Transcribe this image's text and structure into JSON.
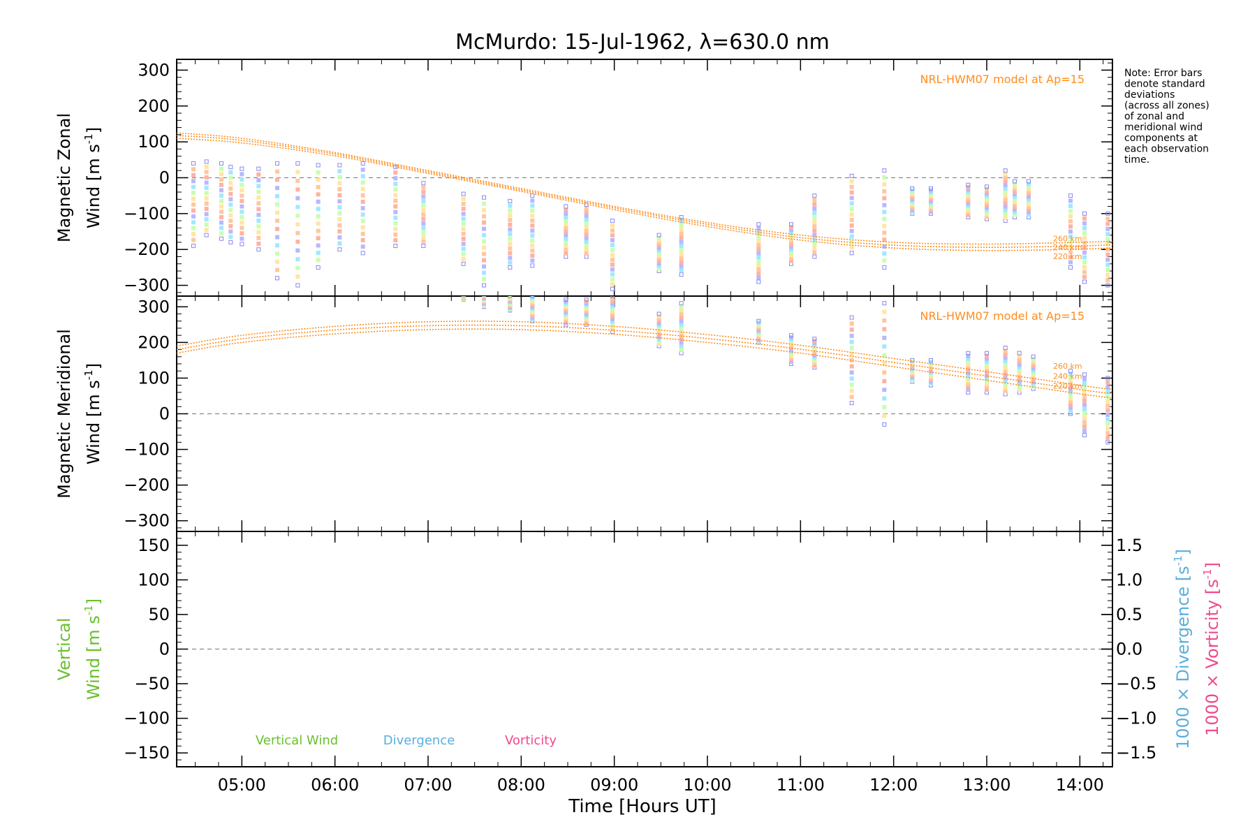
{
  "colors": {
    "model": "#ff8c1a",
    "vertical": "#6abf2e",
    "divergence": "#5aaedc",
    "vorticity": "#ee4a8c",
    "zero_line": "#888888",
    "points": [
      "#ffb3a0",
      "#ffc7a0",
      "#ffe6a0",
      "#c8ffb0",
      "#a0e8ff",
      "#b8b8ff"
    ]
  },
  "chart_data": {
    "type": "scatter",
    "title": "McMurdo: 15-Jul-1962, λ=630.0 nm",
    "xlabel": "Time [Hours UT]",
    "xlim": [
      4.3,
      14.35
    ],
    "x_ticks": [
      5,
      6,
      7,
      8,
      9,
      10,
      11,
      12,
      13,
      14
    ],
    "x_tick_labels": [
      "05:00",
      "06:00",
      "07:00",
      "08:00",
      "09:00",
      "10:00",
      "11:00",
      "12:00",
      "13:00",
      "14:00"
    ],
    "grid": false,
    "note": [
      "Note: Error bars",
      "denote standard",
      "deviations",
      "(across all zones)",
      "of zonal and",
      "meridional wind",
      "components at",
      "each observation",
      "time."
    ],
    "panels": [
      {
        "id": "zonal",
        "ylabel_line1": "Magnetic Zonal",
        "ylabel_line2": "Wind [m s",
        "ylabel_sup": "-1",
        "ylabel_close": "]",
        "ylim": [
          -330,
          330
        ],
        "y_ticks": [
          -300,
          -200,
          -100,
          0,
          100,
          200,
          300
        ],
        "y_tick_labels": [
          "−300",
          "−200",
          "−100",
          "0",
          "100",
          "200",
          "300"
        ],
        "model_label": "NRL-HWM07 model at Ap=15",
        "model_curves": [
          {
            "name": "260 km",
            "x": [
              4.3,
              5,
              6,
              7,
              8,
              9,
              10,
              11,
              12,
              13,
              14,
              14.35
            ],
            "y": [
              125,
              110,
              70,
              20,
              -30,
              -80,
              -125,
              -160,
              -180,
              -185,
              -180,
              -177
            ]
          },
          {
            "name": "240 km",
            "x": [
              4.3,
              5,
              6,
              7,
              8,
              9,
              10,
              11,
              12,
              13,
              14,
              14.35
            ],
            "y": [
              118,
              104,
              66,
              16,
              -34,
              -84,
              -130,
              -167,
              -188,
              -194,
              -190,
              -187
            ]
          },
          {
            "name": "220 km",
            "x": [
              4.3,
              5,
              6,
              7,
              8,
              9,
              10,
              11,
              12,
              13,
              14,
              14.35
            ],
            "y": [
              110,
              97,
              61,
              12,
              -38,
              -89,
              -136,
              -174,
              -196,
              -203,
              -199,
              -196
            ]
          }
        ],
        "observations": [
          {
            "x": 4.48,
            "low": -190,
            "high": 40
          },
          {
            "x": 4.62,
            "low": -160,
            "high": 45
          },
          {
            "x": 4.78,
            "low": -170,
            "high": 40
          },
          {
            "x": 4.88,
            "low": -180,
            "high": 30
          },
          {
            "x": 5.0,
            "low": -185,
            "high": 25
          },
          {
            "x": 5.18,
            "low": -200,
            "high": 25
          },
          {
            "x": 5.38,
            "low": -280,
            "high": 40
          },
          {
            "x": 5.6,
            "low": -300,
            "high": 40
          },
          {
            "x": 5.82,
            "low": -250,
            "high": 35
          },
          {
            "x": 6.05,
            "low": -200,
            "high": 35
          },
          {
            "x": 6.3,
            "low": -210,
            "high": 40
          },
          {
            "x": 6.65,
            "low": -190,
            "high": 30
          },
          {
            "x": 6.95,
            "low": -190,
            "high": -15
          },
          {
            "x": 7.38,
            "low": -240,
            "high": -45
          },
          {
            "x": 7.6,
            "low": -300,
            "high": -55
          },
          {
            "x": 7.88,
            "low": -250,
            "high": -65
          },
          {
            "x": 8.12,
            "low": -245,
            "high": -50
          },
          {
            "x": 8.48,
            "low": -220,
            "high": -80
          },
          {
            "x": 8.7,
            "low": -220,
            "high": -75
          },
          {
            "x": 8.98,
            "low": -310,
            "high": -120
          },
          {
            "x": 9.48,
            "low": -260,
            "high": -160
          },
          {
            "x": 9.72,
            "low": -270,
            "high": -110
          },
          {
            "x": 10.55,
            "low": -290,
            "high": -130
          },
          {
            "x": 10.9,
            "low": -240,
            "high": -130
          },
          {
            "x": 11.15,
            "low": -220,
            "high": -50
          },
          {
            "x": 11.55,
            "low": -210,
            "high": 5
          },
          {
            "x": 11.9,
            "low": -250,
            "high": 20
          },
          {
            "x": 12.2,
            "low": -100,
            "high": -30
          },
          {
            "x": 12.4,
            "low": -100,
            "high": -30
          },
          {
            "x": 12.8,
            "low": -110,
            "high": -20
          },
          {
            "x": 13.0,
            "low": -115,
            "high": -25
          },
          {
            "x": 13.2,
            "low": -120,
            "high": 20
          },
          {
            "x": 13.3,
            "low": -110,
            "high": -10
          },
          {
            "x": 13.45,
            "low": -110,
            "high": -10
          },
          {
            "x": 13.9,
            "low": -250,
            "high": -50
          },
          {
            "x": 14.05,
            "low": -290,
            "high": -100
          },
          {
            "x": 14.3,
            "low": -300,
            "high": -100
          }
        ]
      },
      {
        "id": "meridional",
        "ylabel_line1": "Magnetic Meridional",
        "ylabel_line2": "Wind [m s",
        "ylabel_sup": "-1",
        "ylabel_close": "]",
        "ylim": [
          -330,
          330
        ],
        "y_ticks": [
          -300,
          -200,
          -100,
          0,
          100,
          200,
          300
        ],
        "y_tick_labels": [
          "−300",
          "−200",
          "−100",
          "0",
          "100",
          "200",
          "300"
        ],
        "model_label": "NRL-HWM07 model at Ap=15",
        "model_curves": [
          {
            "name": "260 km",
            "x": [
              4.3,
              5,
              6,
              7,
              8,
              9,
              10,
              11,
              12,
              13,
              14,
              14.35
            ],
            "y": [
              190,
              220,
              245,
              258,
              258,
              245,
              222,
              192,
              155,
              118,
              80,
              68
            ]
          },
          {
            "name": "240 km",
            "x": [
              4.3,
              5,
              6,
              7,
              8,
              9,
              10,
              11,
              12,
              13,
              14,
              14.35
            ],
            "y": [
              180,
              210,
              235,
              247,
              247,
              234,
              211,
              181,
              144,
              106,
              68,
              56
            ]
          },
          {
            "name": "220 km",
            "x": [
              4.3,
              5,
              6,
              7,
              8,
              9,
              10,
              11,
              12,
              13,
              14,
              14.35
            ],
            "y": [
              170,
              200,
              224,
              236,
              236,
              223,
              200,
              170,
              132,
              94,
              56,
              44
            ]
          }
        ],
        "observations": [
          {
            "x": 7.38,
            "low": 320,
            "high": 335
          },
          {
            "x": 7.6,
            "low": 300,
            "high": 335
          },
          {
            "x": 7.88,
            "low": 290,
            "high": 330
          },
          {
            "x": 8.12,
            "low": 260,
            "high": 330
          },
          {
            "x": 8.48,
            "low": 250,
            "high": 320
          },
          {
            "x": 8.7,
            "low": 250,
            "high": 320
          },
          {
            "x": 8.98,
            "low": 230,
            "high": 330
          },
          {
            "x": 9.48,
            "low": 190,
            "high": 280
          },
          {
            "x": 9.72,
            "low": 170,
            "high": 310
          },
          {
            "x": 10.55,
            "low": 200,
            "high": 260
          },
          {
            "x": 10.9,
            "low": 140,
            "high": 220
          },
          {
            "x": 11.15,
            "low": 130,
            "high": 210
          },
          {
            "x": 11.55,
            "low": 30,
            "high": 270
          },
          {
            "x": 11.9,
            "low": -30,
            "high": 310
          },
          {
            "x": 12.2,
            "low": 90,
            "high": 150
          },
          {
            "x": 12.4,
            "low": 80,
            "high": 150
          },
          {
            "x": 12.8,
            "low": 60,
            "high": 170
          },
          {
            "x": 13.0,
            "low": 60,
            "high": 170
          },
          {
            "x": 13.2,
            "low": 55,
            "high": 185
          },
          {
            "x": 13.35,
            "low": 60,
            "high": 170
          },
          {
            "x": 13.5,
            "low": 70,
            "high": 160
          },
          {
            "x": 13.9,
            "low": 0,
            "high": 120
          },
          {
            "x": 14.05,
            "low": -60,
            "high": 110
          },
          {
            "x": 14.3,
            "low": -80,
            "high": 100
          }
        ]
      },
      {
        "id": "vertical",
        "ylabel_line1": "Vertical",
        "ylabel_line2": "Wind [m s",
        "ylabel_sup": "-1",
        "ylabel_close": "]",
        "ylim": [
          -170,
          170
        ],
        "y_ticks": [
          -150,
          -100,
          -50,
          0,
          50,
          100,
          150
        ],
        "y_tick_labels": [
          "−150",
          "−100",
          "−50",
          "0",
          "50",
          "100",
          "150"
        ],
        "right_axis": {
          "ylim": [
            -1.7,
            1.7
          ],
          "y_ticks": [
            -1.5,
            -1.0,
            -0.5,
            0.0,
            0.5,
            1.0,
            1.5
          ],
          "y_tick_labels": [
            "−1.5",
            "−1.0",
            "−0.5",
            "0.0",
            "0.5",
            "1.0",
            "1.5"
          ],
          "label_div": "1000 × Divergence [s",
          "label_vort": "1000 × Vorticity [s",
          "label_sup": "-1",
          "label_close": "]"
        },
        "legend": [
          "Vertical Wind",
          "Divergence",
          "Vorticity"
        ]
      }
    ]
  }
}
